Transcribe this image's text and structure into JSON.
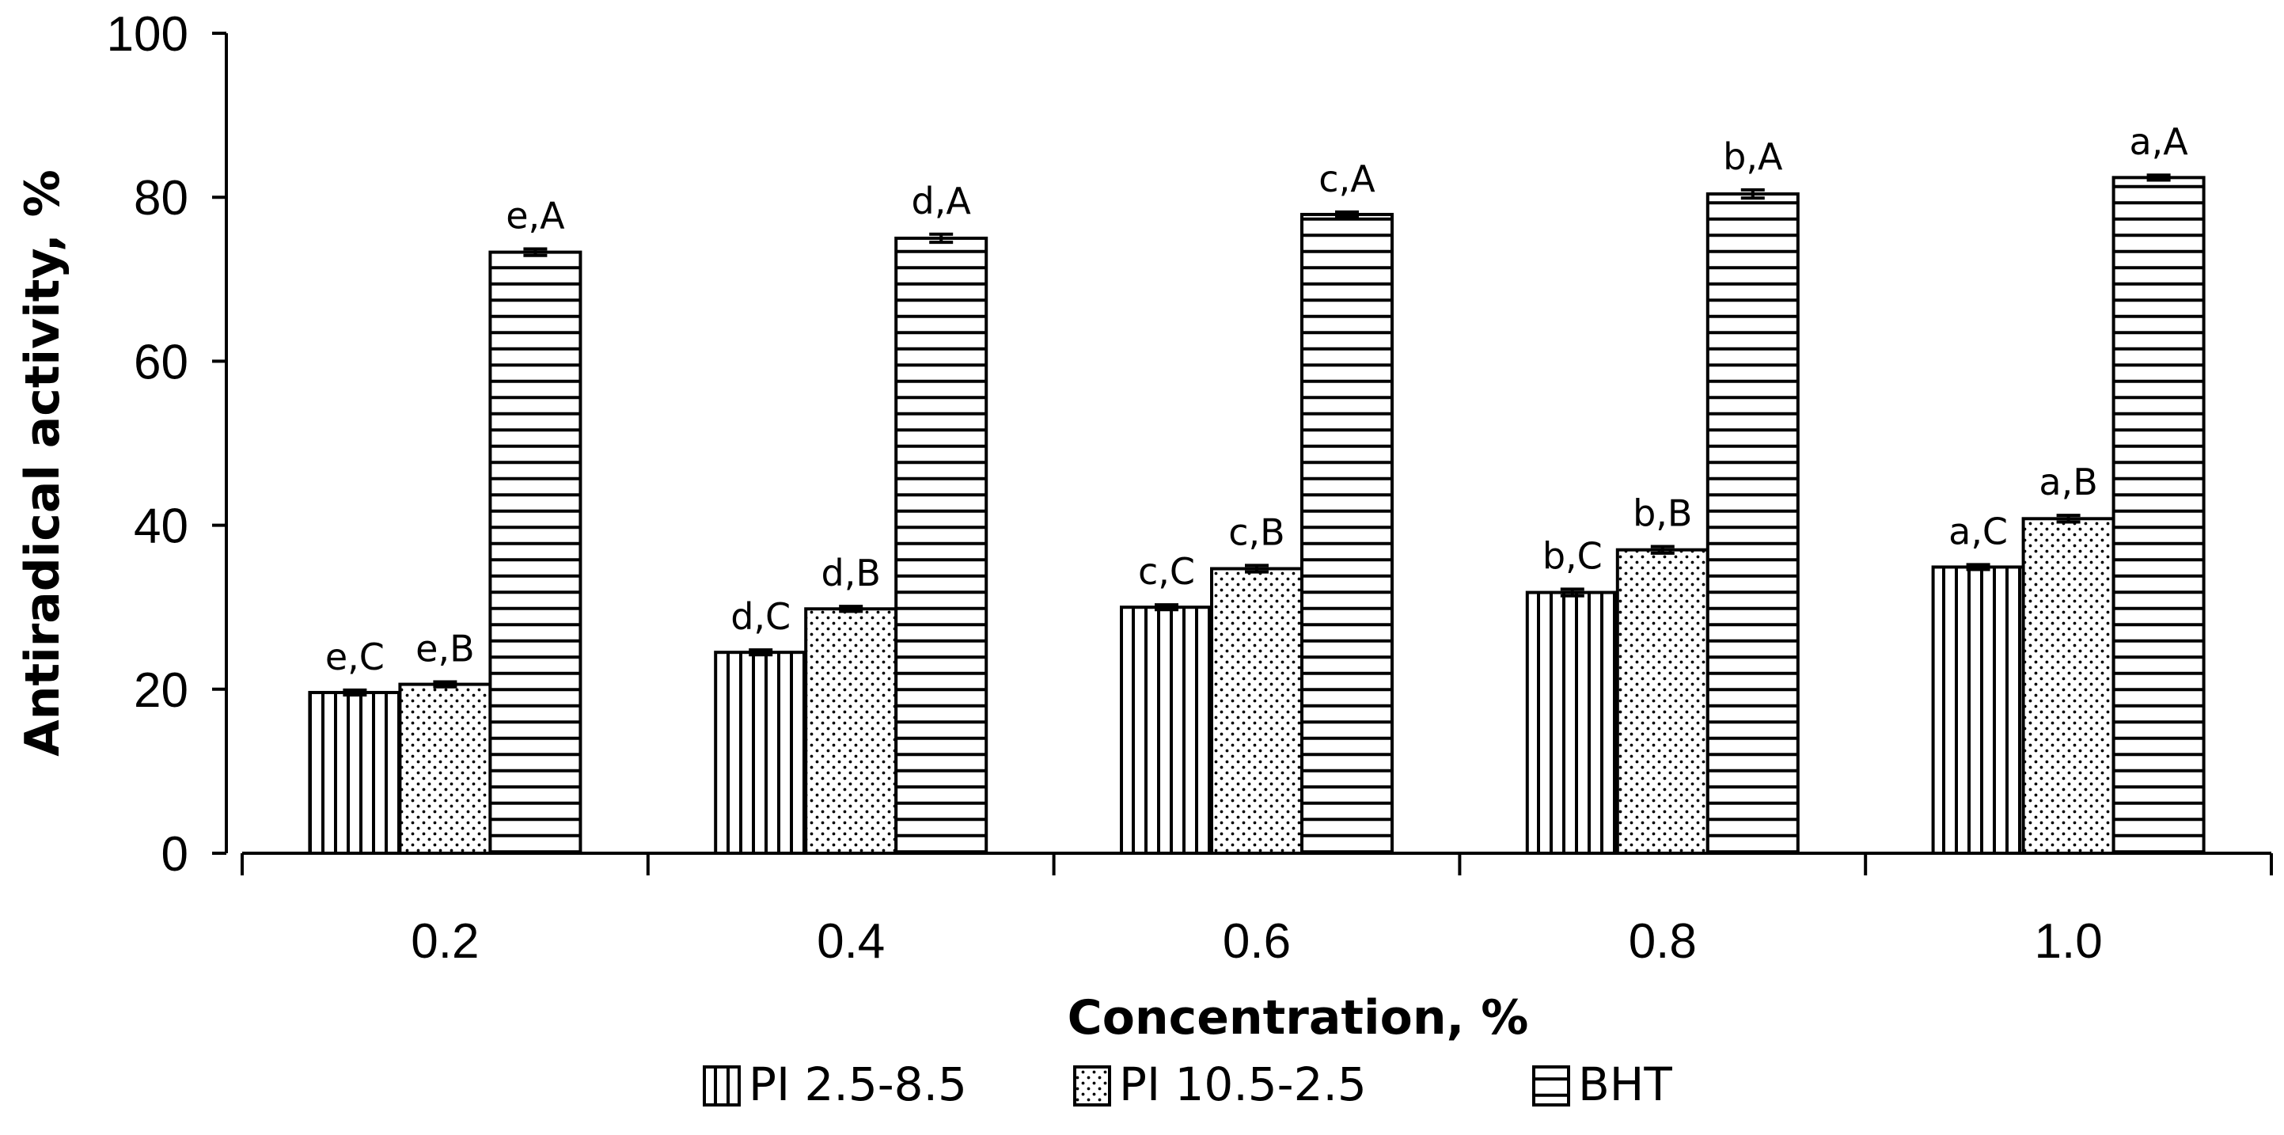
{
  "chart_data": {
    "type": "bar",
    "title": "",
    "xlabel": "Concentration, %",
    "ylabel": "Antiradical activity, %",
    "ylim": [
      0,
      100
    ],
    "yticks": [
      0,
      20,
      40,
      60,
      80,
      100
    ],
    "categories": [
      "0.2",
      "0.4",
      "0.6",
      "0.8",
      "1.0"
    ],
    "series": [
      {
        "name": "PI 2.5-8.5",
        "pattern": "vertical-lines",
        "values": [
          19.6,
          24.5,
          30.0,
          31.8,
          34.9
        ],
        "errors": [
          0.3,
          0.3,
          0.3,
          0.4,
          0.3
        ],
        "labels": [
          "e,C",
          "d,C",
          "c,C",
          "b,C",
          "a,C"
        ]
      },
      {
        "name": "PI 10.5-2.5",
        "pattern": "dots",
        "values": [
          20.6,
          29.8,
          34.7,
          37.0,
          40.8
        ],
        "errors": [
          0.3,
          0.3,
          0.4,
          0.4,
          0.4
        ],
        "labels": [
          "e,B",
          "d,B",
          "c,B",
          "b,B",
          "a,B"
        ]
      },
      {
        "name": "BHT",
        "pattern": "horizontal-lines",
        "values": [
          73.3,
          75.0,
          77.9,
          80.4,
          82.4
        ],
        "errors": [
          0.4,
          0.5,
          0.3,
          0.5,
          0.3
        ],
        "labels": [
          "e,A",
          "d,A",
          "c,A",
          "b,A",
          "a,A"
        ]
      }
    ],
    "legend": {
      "position": "bottom-center"
    },
    "grid": false
  }
}
